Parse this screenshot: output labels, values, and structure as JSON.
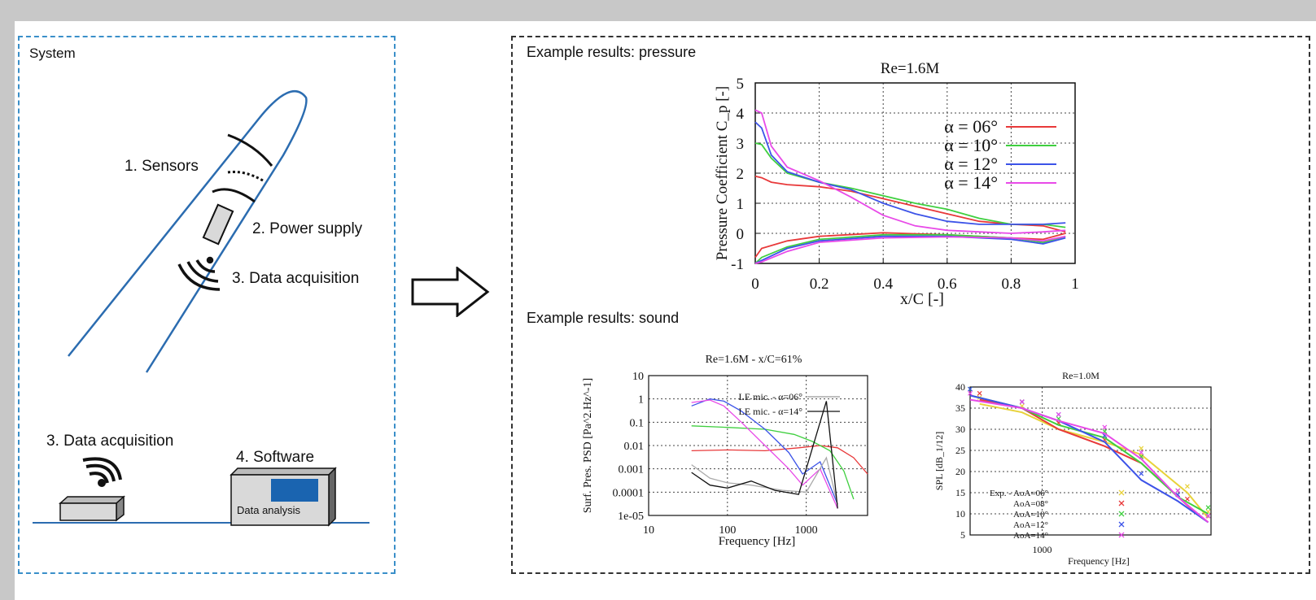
{
  "system": {
    "title": "System",
    "sensors": "1. Sensors",
    "power_supply": "2. Power supply",
    "data_acquisition_blade": "3. Data acquisition",
    "data_acquisition_base": "3. Data acquisition",
    "software": "4. Software",
    "data_analysis": "Data analysis"
  },
  "results": {
    "pressure_heading": "Example  results: pressure",
    "sound_heading": "Example  results: sound"
  },
  "colors": {
    "system_border": "#3a8fc9",
    "screen": "#1a64b0",
    "blade": "#2b6cb0"
  },
  "chart_data": [
    {
      "type": "line",
      "title": "Re=1.6M",
      "xlabel": "x/C [-]",
      "ylabel": "Pressure Coefficient C_p [-]",
      "xlim": [
        0,
        1
      ],
      "ylim": [
        -1,
        5
      ],
      "xticks": [
        "0",
        "0.2",
        "0.4",
        "0.6",
        "0.8",
        "1"
      ],
      "yticks": [
        "-1",
        "0",
        "1",
        "2",
        "3",
        "4",
        "5"
      ],
      "grid": true,
      "legend": "top-right",
      "series": [
        {
          "name": "α = 06°",
          "color": "#e8393a",
          "upper": [
            [
              0,
              1.9
            ],
            [
              0.02,
              1.85
            ],
            [
              0.05,
              1.7
            ],
            [
              0.1,
              1.62
            ],
            [
              0.2,
              1.55
            ],
            [
              0.3,
              1.4
            ],
            [
              0.4,
              1.15
            ],
            [
              0.5,
              0.9
            ],
            [
              0.6,
              0.65
            ],
            [
              0.7,
              0.4
            ],
            [
              0.8,
              0.3
            ],
            [
              0.9,
              0.25
            ],
            [
              0.97,
              0.05
            ]
          ],
          "lower": [
            [
              0,
              -0.8
            ],
            [
              0.02,
              -0.5
            ],
            [
              0.1,
              -0.25
            ],
            [
              0.2,
              -0.1
            ],
            [
              0.4,
              0.02
            ],
            [
              0.6,
              -0.05
            ],
            [
              0.8,
              -0.15
            ],
            [
              0.9,
              -0.2
            ],
            [
              0.97,
              0.0
            ]
          ]
        },
        {
          "name": "α = 10°",
          "color": "#3fcf3f",
          "upper": [
            [
              0,
              3.0
            ],
            [
              0.02,
              2.95
            ],
            [
              0.05,
              2.5
            ],
            [
              0.1,
              2.0
            ],
            [
              0.2,
              1.7
            ],
            [
              0.3,
              1.5
            ],
            [
              0.4,
              1.25
            ],
            [
              0.5,
              1.0
            ],
            [
              0.6,
              0.8
            ],
            [
              0.7,
              0.5
            ],
            [
              0.8,
              0.3
            ],
            [
              0.9,
              0.3
            ],
            [
              0.97,
              0.2
            ]
          ],
          "lower": [
            [
              0,
              -1.0
            ],
            [
              0.02,
              -0.8
            ],
            [
              0.1,
              -0.45
            ],
            [
              0.2,
              -0.2
            ],
            [
              0.4,
              -0.05
            ],
            [
              0.6,
              -0.05
            ],
            [
              0.8,
              -0.15
            ],
            [
              0.9,
              -0.3
            ],
            [
              0.97,
              -0.1
            ]
          ]
        },
        {
          "name": "α = 12°",
          "color": "#3c53e8",
          "upper": [
            [
              0,
              3.7
            ],
            [
              0.02,
              3.5
            ],
            [
              0.05,
              2.6
            ],
            [
              0.1,
              2.05
            ],
            [
              0.2,
              1.7
            ],
            [
              0.3,
              1.45
            ],
            [
              0.4,
              1.0
            ],
            [
              0.5,
              0.65
            ],
            [
              0.6,
              0.4
            ],
            [
              0.7,
              0.3
            ],
            [
              0.8,
              0.3
            ],
            [
              0.9,
              0.3
            ],
            [
              0.97,
              0.35
            ]
          ],
          "lower": [
            [
              0,
              -1.0
            ],
            [
              0.02,
              -0.9
            ],
            [
              0.1,
              -0.5
            ],
            [
              0.2,
              -0.25
            ],
            [
              0.4,
              -0.1
            ],
            [
              0.6,
              -0.1
            ],
            [
              0.8,
              -0.2
            ],
            [
              0.9,
              -0.35
            ],
            [
              0.97,
              -0.15
            ]
          ]
        },
        {
          "name": "α = 14°",
          "color": "#e84ae8",
          "upper": [
            [
              0,
              4.1
            ],
            [
              0.02,
              4.0
            ],
            [
              0.05,
              2.9
            ],
            [
              0.1,
              2.2
            ],
            [
              0.2,
              1.75
            ],
            [
              0.3,
              1.2
            ],
            [
              0.4,
              0.6
            ],
            [
              0.5,
              0.25
            ],
            [
              0.6,
              0.1
            ],
            [
              0.7,
              0.05
            ],
            [
              0.8,
              0.0
            ],
            [
              0.9,
              0.05
            ],
            [
              0.97,
              0.1
            ]
          ],
          "lower": [
            [
              0,
              -1.0
            ],
            [
              0.02,
              -0.95
            ],
            [
              0.1,
              -0.6
            ],
            [
              0.2,
              -0.3
            ],
            [
              0.4,
              -0.15
            ],
            [
              0.6,
              -0.12
            ],
            [
              0.8,
              -0.15
            ],
            [
              0.9,
              -0.25
            ],
            [
              0.97,
              -0.1
            ]
          ]
        }
      ]
    },
    {
      "type": "line",
      "title": "Re=1.6M - x/C=61%",
      "xlabel": "Frequency [Hz]",
      "ylabel": "Surf. Pres. PSD [Pa^2.Hz^-1]",
      "xscale": "log",
      "yscale": "log",
      "xlim": [
        10,
        6000
      ],
      "ylim": [
        1e-05,
        10
      ],
      "xticks": [
        "10",
        "100",
        "1000"
      ],
      "yticks": [
        "10",
        "1",
        "0.1",
        "0.01",
        "0.001",
        "0.0001",
        "1e-05"
      ],
      "legend": [
        "LE mic. - α=06°",
        "LE mic. - α=14°"
      ],
      "series": [
        {
          "color": "#e8393a",
          "points": [
            [
              35,
              0.006
            ],
            [
              100,
              0.0065
            ],
            [
              300,
              0.006
            ],
            [
              800,
              0.008
            ],
            [
              1500,
              0.01
            ],
            [
              2500,
              0.008
            ],
            [
              4000,
              0.003
            ],
            [
              6000,
              0.0006
            ]
          ]
        },
        {
          "color": "#3fcf3f",
          "points": [
            [
              35,
              0.07
            ],
            [
              100,
              0.06
            ],
            [
              300,
              0.05
            ],
            [
              700,
              0.03
            ],
            [
              1200,
              0.015
            ],
            [
              2000,
              0.006
            ],
            [
              3000,
              0.0008
            ],
            [
              4000,
              5e-05
            ]
          ]
        },
        {
          "color": "#3c53e8",
          "points": [
            [
              35,
              0.5
            ],
            [
              60,
              1.0
            ],
            [
              90,
              0.8
            ],
            [
              150,
              0.3
            ],
            [
              300,
              0.05
            ],
            [
              600,
              0.005
            ],
            [
              900,
              0.0006
            ],
            [
              1500,
              0.002
            ],
            [
              2500,
              3e-05
            ]
          ]
        },
        {
          "color": "#e84ae8",
          "points": [
            [
              35,
              0.7
            ],
            [
              60,
              0.9
            ],
            [
              90,
              0.5
            ],
            [
              150,
              0.1
            ],
            [
              300,
              0.01
            ],
            [
              600,
              0.001
            ],
            [
              900,
              0.0002
            ],
            [
              1500,
              0.001
            ],
            [
              2500,
              2e-05
            ]
          ]
        },
        {
          "color": "#aaaaaa",
          "points": [
            [
              35,
              0.0015
            ],
            [
              60,
              0.0004
            ],
            [
              100,
              0.00025
            ],
            [
              200,
              0.0002
            ],
            [
              500,
              0.00012
            ],
            [
              1000,
              0.0001
            ],
            [
              1800,
              0.003
            ],
            [
              2500,
              3e-05
            ]
          ]
        },
        {
          "color": "#111111",
          "points": [
            [
              35,
              0.0007
            ],
            [
              60,
              0.0002
            ],
            [
              100,
              0.00015
            ],
            [
              200,
              0.0003
            ],
            [
              400,
              0.00012
            ],
            [
              800,
              8e-05
            ],
            [
              1800,
              0.8
            ],
            [
              2500,
              2e-05
            ]
          ]
        }
      ]
    },
    {
      "type": "line",
      "title": "Re=1.0M",
      "xlabel": "Frequency [Hz]",
      "ylabel": "SPL [dB_1/12]",
      "xscale": "log",
      "xlim": [
        450,
        6500
      ],
      "ylim": [
        5,
        40
      ],
      "xticks": [
        "1000"
      ],
      "yticks": [
        "5",
        "10",
        "15",
        "20",
        "25",
        "30",
        "35",
        "40"
      ],
      "legend": [
        "Exp. - AoA=06°",
        "AoA=08°",
        "AoA=10°",
        "AoA=12°",
        "AoA=14°"
      ],
      "series": [
        {
          "name": "AoA=06°",
          "color": "#e8d23a",
          "points": [
            [
              500,
              36
            ],
            [
              800,
              34
            ],
            [
              1200,
              30
            ],
            [
              2000,
              27
            ],
            [
              3000,
              24
            ],
            [
              5000,
              15
            ],
            [
              6300,
              9
            ]
          ]
        },
        {
          "name": "AoA=08°",
          "color": "#e8393a",
          "points": [
            [
              500,
              37
            ],
            [
              800,
              35
            ],
            [
              1200,
              30
            ],
            [
              2000,
              26
            ],
            [
              3000,
              22
            ],
            [
              5000,
              12
            ],
            [
              6300,
              8
            ]
          ]
        },
        {
          "name": "AoA=10°",
          "color": "#3fcf3f",
          "points": [
            [
              450,
              38
            ],
            [
              800,
              35
            ],
            [
              1200,
              31
            ],
            [
              2000,
              28
            ],
            [
              3000,
              22
            ],
            [
              4500,
              14
            ],
            [
              6300,
              10
            ]
          ]
        },
        {
          "name": "AoA=12°",
          "color": "#3c53e8",
          "points": [
            [
              450,
              38
            ],
            [
              800,
              35
            ],
            [
              1200,
              32
            ],
            [
              2000,
              27
            ],
            [
              3000,
              18
            ],
            [
              4500,
              13
            ],
            [
              6300,
              8
            ]
          ]
        },
        {
          "name": "AoA=14°",
          "color": "#e84ae8",
          "points": [
            [
              450,
              37
            ],
            [
              800,
              35
            ],
            [
              1200,
              32
            ],
            [
              2000,
              29
            ],
            [
              3000,
              23
            ],
            [
              4500,
              14
            ],
            [
              6300,
              8
            ]
          ]
        }
      ]
    }
  ]
}
